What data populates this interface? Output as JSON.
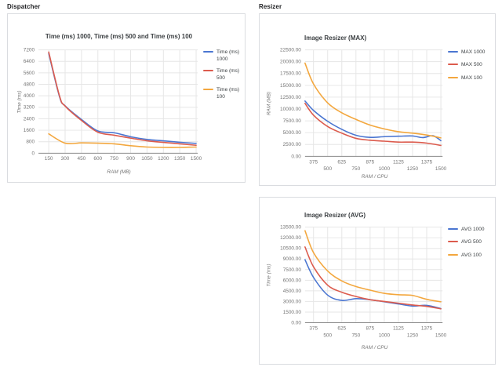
{
  "sections": [
    {
      "label": "Dispatcher"
    },
    {
      "label": "Resizer"
    }
  ],
  "palette": {
    "blue": "#4b76d1",
    "red": "#dc5b4d",
    "orange": "#f3a73e",
    "grid": "#e6e6e6",
    "axis": "#8a8a8a",
    "tick_text": "#757575",
    "title_text": "#3c4043"
  },
  "chart_data": [
    {
      "type": "line",
      "title": "Time (ms) 1000, Time (ms) 500 and Time (ms) 100",
      "x_title": "RAM (MB)",
      "y_title": "Time (ms)",
      "legend_position": "right",
      "grid": true,
      "xlim": [
        56,
        1515
      ],
      "ylim": [
        0,
        7200
      ],
      "xticks": [
        150,
        300,
        450,
        600,
        750,
        900,
        1050,
        1200,
        1350,
        1500
      ],
      "yticks": [
        0,
        800,
        1600,
        2400,
        3200,
        4000,
        4800,
        5600,
        6400,
        7200
      ],
      "ytick_decimals": 0,
      "xtick_stagger": false,
      "series": [
        {
          "name": "Time (ms) 1000",
          "color": "blue",
          "x": [
            150,
            250,
            300,
            450,
            600,
            750,
            900,
            1050,
            1200,
            1350,
            1500
          ],
          "y": [
            6950,
            3900,
            3300,
            2350,
            1550,
            1420,
            1150,
            960,
            860,
            760,
            680
          ]
        },
        {
          "name": "Time (ms) 500",
          "color": "red",
          "x": [
            150,
            250,
            300,
            450,
            600,
            750,
            900,
            1050,
            1200,
            1350,
            1500
          ],
          "y": [
            7050,
            3950,
            3280,
            2280,
            1460,
            1250,
            1050,
            860,
            750,
            650,
            550
          ]
        },
        {
          "name": "Time (ms) 100",
          "color": "orange",
          "x": [
            150,
            300,
            450,
            600,
            750,
            900,
            1050,
            1200,
            1350,
            1500
          ],
          "y": [
            1350,
            700,
            720,
            700,
            650,
            520,
            430,
            400,
            400,
            430
          ]
        }
      ]
    },
    {
      "type": "line",
      "title": "Image Resizer (MAX)",
      "x_title": "RAM / CPU",
      "y_title": "RAM (MB)",
      "legend_position": "right",
      "grid": true,
      "xlim": [
        300,
        1515
      ],
      "ylim": [
        0,
        22500
      ],
      "xticks": [
        375,
        500,
        625,
        750,
        875,
        1000,
        1125,
        1250,
        1375,
        1500
      ],
      "yticks": [
        0,
        2500,
        5000,
        7500,
        10000,
        12500,
        15000,
        17500,
        20000,
        22500
      ],
      "ytick_decimals": 2,
      "xtick_stagger": true,
      "series": [
        {
          "name": "MAX 1000",
          "color": "blue",
          "x": [
            300,
            375,
            500,
            625,
            750,
            875,
            1000,
            1125,
            1250,
            1340,
            1430,
            1500
          ],
          "y": [
            11700,
            9700,
            7400,
            5700,
            4450,
            4000,
            4150,
            4250,
            4300,
            3950,
            4350,
            3300
          ]
        },
        {
          "name": "MAX 500",
          "color": "red",
          "x": [
            300,
            375,
            500,
            625,
            750,
            875,
            1000,
            1125,
            1250,
            1375,
            1500
          ],
          "y": [
            11200,
            8700,
            6300,
            4900,
            3800,
            3400,
            3200,
            3000,
            3000,
            2800,
            2300
          ]
        },
        {
          "name": "MAX 100",
          "color": "orange",
          "x": [
            300,
            375,
            500,
            625,
            750,
            875,
            1000,
            1125,
            1250,
            1375,
            1500
          ],
          "y": [
            19700,
            15300,
            11300,
            9200,
            7800,
            6600,
            5800,
            5200,
            4900,
            4500,
            3900
          ]
        }
      ]
    },
    {
      "type": "line",
      "title": "Image Resizer (AVG)",
      "x_title": "RAM / CPU",
      "y_title": "Time (ms)",
      "legend_position": "right",
      "grid": true,
      "xlim": [
        300,
        1515
      ],
      "ylim": [
        0,
        13500
      ],
      "xticks": [
        375,
        500,
        625,
        750,
        875,
        1000,
        1125,
        1250,
        1375,
        1500
      ],
      "yticks": [
        0,
        1500,
        3000,
        4500,
        6000,
        7500,
        9000,
        10500,
        12000,
        13500
      ],
      "ytick_decimals": 2,
      "xtick_stagger": true,
      "series": [
        {
          "name": "AVG 1000",
          "color": "blue",
          "x": [
            300,
            375,
            500,
            625,
            750,
            875,
            1000,
            1125,
            1250,
            1375,
            1500
          ],
          "y": [
            8900,
            6400,
            3900,
            3150,
            3400,
            3250,
            2950,
            2650,
            2350,
            2450,
            2000
          ]
        },
        {
          "name": "AVG 500",
          "color": "red",
          "x": [
            300,
            375,
            500,
            625,
            750,
            875,
            1000,
            1125,
            1250,
            1375,
            1500
          ],
          "y": [
            10700,
            7900,
            5300,
            4300,
            3700,
            3250,
            3000,
            2750,
            2500,
            2300,
            1950
          ]
        },
        {
          "name": "AVG 100",
          "color": "orange",
          "x": [
            300,
            375,
            500,
            625,
            750,
            875,
            1000,
            1125,
            1250,
            1375,
            1500
          ],
          "y": [
            13000,
            9900,
            7300,
            5900,
            5100,
            4600,
            4150,
            3950,
            3850,
            3300,
            2950
          ]
        }
      ]
    }
  ]
}
